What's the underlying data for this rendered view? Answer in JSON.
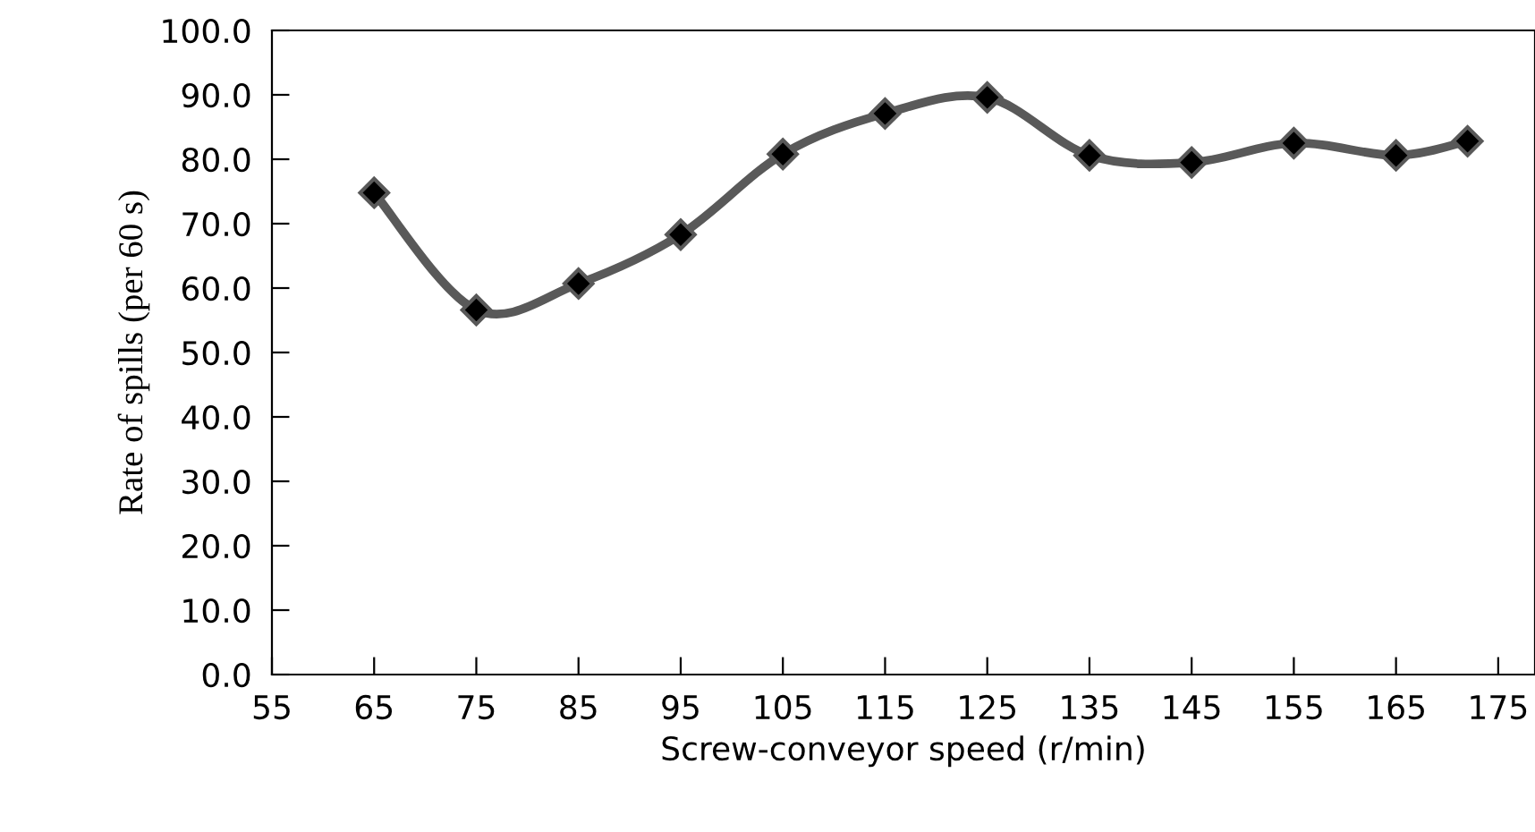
{
  "chart_data": {
    "type": "line",
    "xlabel": "Screw-conveyor speed (r/min)",
    "ylabel": "Rate of spills (per 60 s)",
    "x": [
      65,
      75,
      85,
      95,
      105,
      115,
      125,
      135,
      145,
      155,
      165,
      172
    ],
    "series": [
      {
        "color": "#595959",
        "values": [
          74.8,
          56.6,
          60.7,
          68.3,
          80.8,
          87.1,
          89.6,
          80.6,
          79.5,
          82.5,
          80.6,
          82.8
        ]
      }
    ],
    "xlim": [
      55,
      178.6
    ],
    "xticks": [
      55,
      65,
      75,
      85,
      95,
      105,
      115,
      125,
      135,
      145,
      155,
      165,
      175
    ],
    "ylim": [
      0,
      100
    ],
    "yticks": [
      {
        "value": 0,
        "label": "0.0"
      },
      {
        "value": 10,
        "label": "10.0"
      },
      {
        "value": 20,
        "label": "20.0"
      },
      {
        "value": 30,
        "label": "30.0"
      },
      {
        "value": 40,
        "label": "40.0"
      },
      {
        "value": 50,
        "label": "50.0"
      },
      {
        "value": 60,
        "label": "60.0"
      },
      {
        "value": 70,
        "label": "70.0"
      },
      {
        "value": 80,
        "label": "80.0"
      },
      {
        "value": 90,
        "label": "90.0"
      },
      {
        "value": 100,
        "label": "100.0"
      }
    ],
    "marker": "diamond",
    "line_style": "solid",
    "grid": false,
    "legend": false
  }
}
